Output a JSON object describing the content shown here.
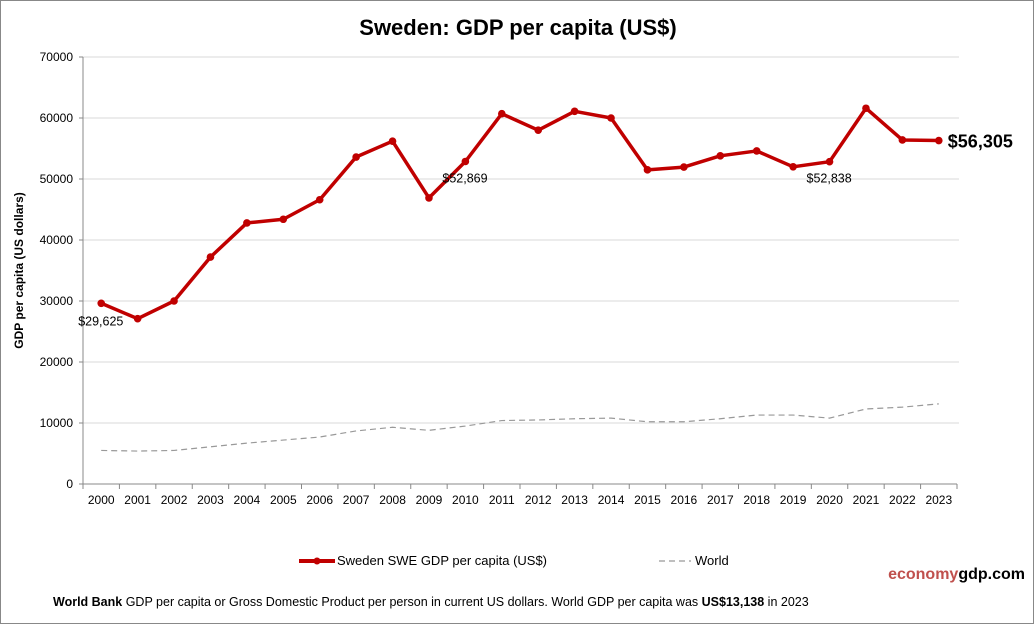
{
  "chart_data": {
    "type": "line",
    "title": "Sweden: GDP per capita (US$)",
    "ylabel": "GDP per capita (US dollars)",
    "xlabel": "",
    "ylim": [
      0,
      70000
    ],
    "yticks": [
      0,
      10000,
      20000,
      30000,
      40000,
      50000,
      60000,
      70000
    ],
    "grid": true,
    "legend_position": "bottom",
    "categories": [
      "2000",
      "2001",
      "2002",
      "2003",
      "2004",
      "2005",
      "2006",
      "2007",
      "2008",
      "2009",
      "2010",
      "2011",
      "2012",
      "2013",
      "2014",
      "2015",
      "2016",
      "2017",
      "2018",
      "2019",
      "2020",
      "2021",
      "2022",
      "2023"
    ],
    "series": [
      {
        "name": "Sweden SWE GDP per capita (US$)",
        "color": "#c00000",
        "values": [
          29625,
          27100,
          30000,
          37200,
          42800,
          43400,
          46600,
          53600,
          56200,
          46900,
          52869,
          60700,
          58000,
          61100,
          60000,
          51500,
          51950,
          53800,
          54600,
          52000,
          52838,
          61600,
          56400,
          56305
        ]
      },
      {
        "name": "World",
        "color": "#999999",
        "values": [
          5500,
          5400,
          5500,
          6100,
          6700,
          7200,
          7700,
          8700,
          9300,
          8800,
          9500,
          10400,
          10500,
          10700,
          10800,
          10200,
          10200,
          10700,
          11300,
          11300,
          10800,
          12300,
          12600,
          13138
        ]
      }
    ],
    "annotations": [
      {
        "year": "2000",
        "text": "$29,625"
      },
      {
        "year": "2010",
        "text": "$52,869"
      },
      {
        "year": "2020",
        "text": "$52,838"
      },
      {
        "year": "2023",
        "text": "$56,305"
      }
    ]
  },
  "brand": {
    "part1": "economy",
    "part2": "gdp",
    "part3": ".com",
    "color1": "#c0504d",
    "color2": "#000000"
  },
  "footer": {
    "bold1": "World Bank",
    "text1": " GDP per capita or Gross Domestic Product per person  in current US dollars.   World GDP per capita was ",
    "bold2": "US$13,138",
    "text2": "  in 2023"
  }
}
